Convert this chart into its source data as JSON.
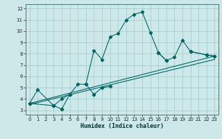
{
  "title": "",
  "xlabel": "Humidex (Indice chaleur)",
  "bg_color": "#cce8e8",
  "grid_color": "#aacccc",
  "line_color": "#006666",
  "xlim": [
    -0.5,
    23.5
  ],
  "ylim": [
    2.6,
    12.4
  ],
  "xticks": [
    0,
    1,
    2,
    3,
    4,
    5,
    6,
    7,
    8,
    9,
    10,
    11,
    12,
    13,
    14,
    15,
    16,
    17,
    18,
    19,
    20,
    21,
    22,
    23
  ],
  "yticks": [
    3,
    4,
    5,
    6,
    7,
    8,
    9,
    10,
    11,
    12
  ],
  "series1_x": [
    0,
    1,
    3,
    4,
    5,
    6,
    7,
    8,
    9,
    10,
    11,
    12,
    13,
    14,
    15,
    16,
    17,
    18,
    19,
    20,
    22,
    23
  ],
  "series1_y": [
    3.6,
    4.8,
    3.4,
    4.0,
    4.4,
    5.3,
    5.3,
    8.3,
    7.5,
    9.5,
    9.8,
    11.0,
    11.5,
    11.7,
    9.9,
    8.1,
    7.4,
    7.7,
    9.2,
    8.2,
    7.9,
    7.8
  ],
  "series2_segments": [
    {
      "x": [
        0,
        3
      ],
      "y": [
        3.6,
        3.4
      ]
    },
    {
      "x": [
        3,
        4
      ],
      "y": [
        3.4,
        3.1
      ]
    },
    {
      "x": [
        4,
        5
      ],
      "y": [
        3.1,
        4.4
      ]
    },
    {
      "x": [
        7,
        8
      ],
      "y": [
        5.3,
        4.4
      ]
    },
    {
      "x": [
        8,
        9
      ],
      "y": [
        4.4,
        5.0
      ]
    },
    {
      "x": [
        9,
        10
      ],
      "y": [
        5.0,
        5.1
      ]
    },
    {
      "x": [
        16,
        17
      ],
      "y": [
        8.1,
        7.4
      ]
    },
    {
      "x": [
        20,
        22
      ],
      "y": [
        8.2,
        7.9
      ]
    },
    {
      "x": [
        22,
        23
      ],
      "y": [
        7.9,
        7.8
      ]
    }
  ],
  "trendline1": {
    "x": [
      0,
      23
    ],
    "y": [
      3.6,
      7.8
    ]
  },
  "trendline2": {
    "x": [
      0,
      23
    ],
    "y": [
      3.5,
      7.5
    ]
  }
}
